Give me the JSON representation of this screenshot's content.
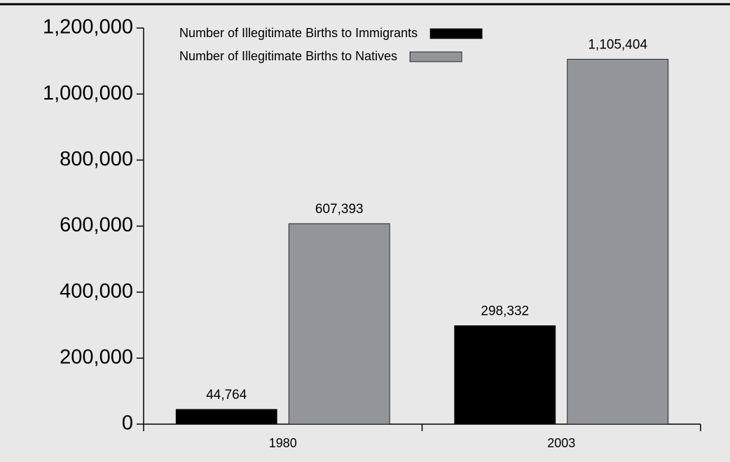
{
  "chart_data": {
    "type": "bar",
    "categories": [
      "1980",
      "2003"
    ],
    "series": [
      {
        "name": "Number of Illegitimate Births to Immigrants",
        "color": "#000000",
        "values": [
          44764,
          298332
        ],
        "value_labels": [
          "44,764",
          "298,332"
        ]
      },
      {
        "name": "Number of Illegitimate Births to Natives",
        "color": "#939598",
        "values": [
          607393,
          1105404
        ],
        "value_labels": [
          "607,393",
          "1,105,404"
        ]
      }
    ],
    "ylim": [
      0,
      1200000
    ],
    "yticks": [
      0,
      {
        "value": 200000,
        "label": "200,000"
      },
      {
        "value": 400000,
        "label": "400,000"
      },
      {
        "value": 600000,
        "label": "600,000"
      },
      {
        "value": 800000,
        "label": "800,000"
      },
      {
        "value": 1000000,
        "label": "1,000,000"
      },
      {
        "value": 1200000,
        "label": "1,200,000"
      }
    ],
    "grid": false,
    "legend": "top"
  }
}
